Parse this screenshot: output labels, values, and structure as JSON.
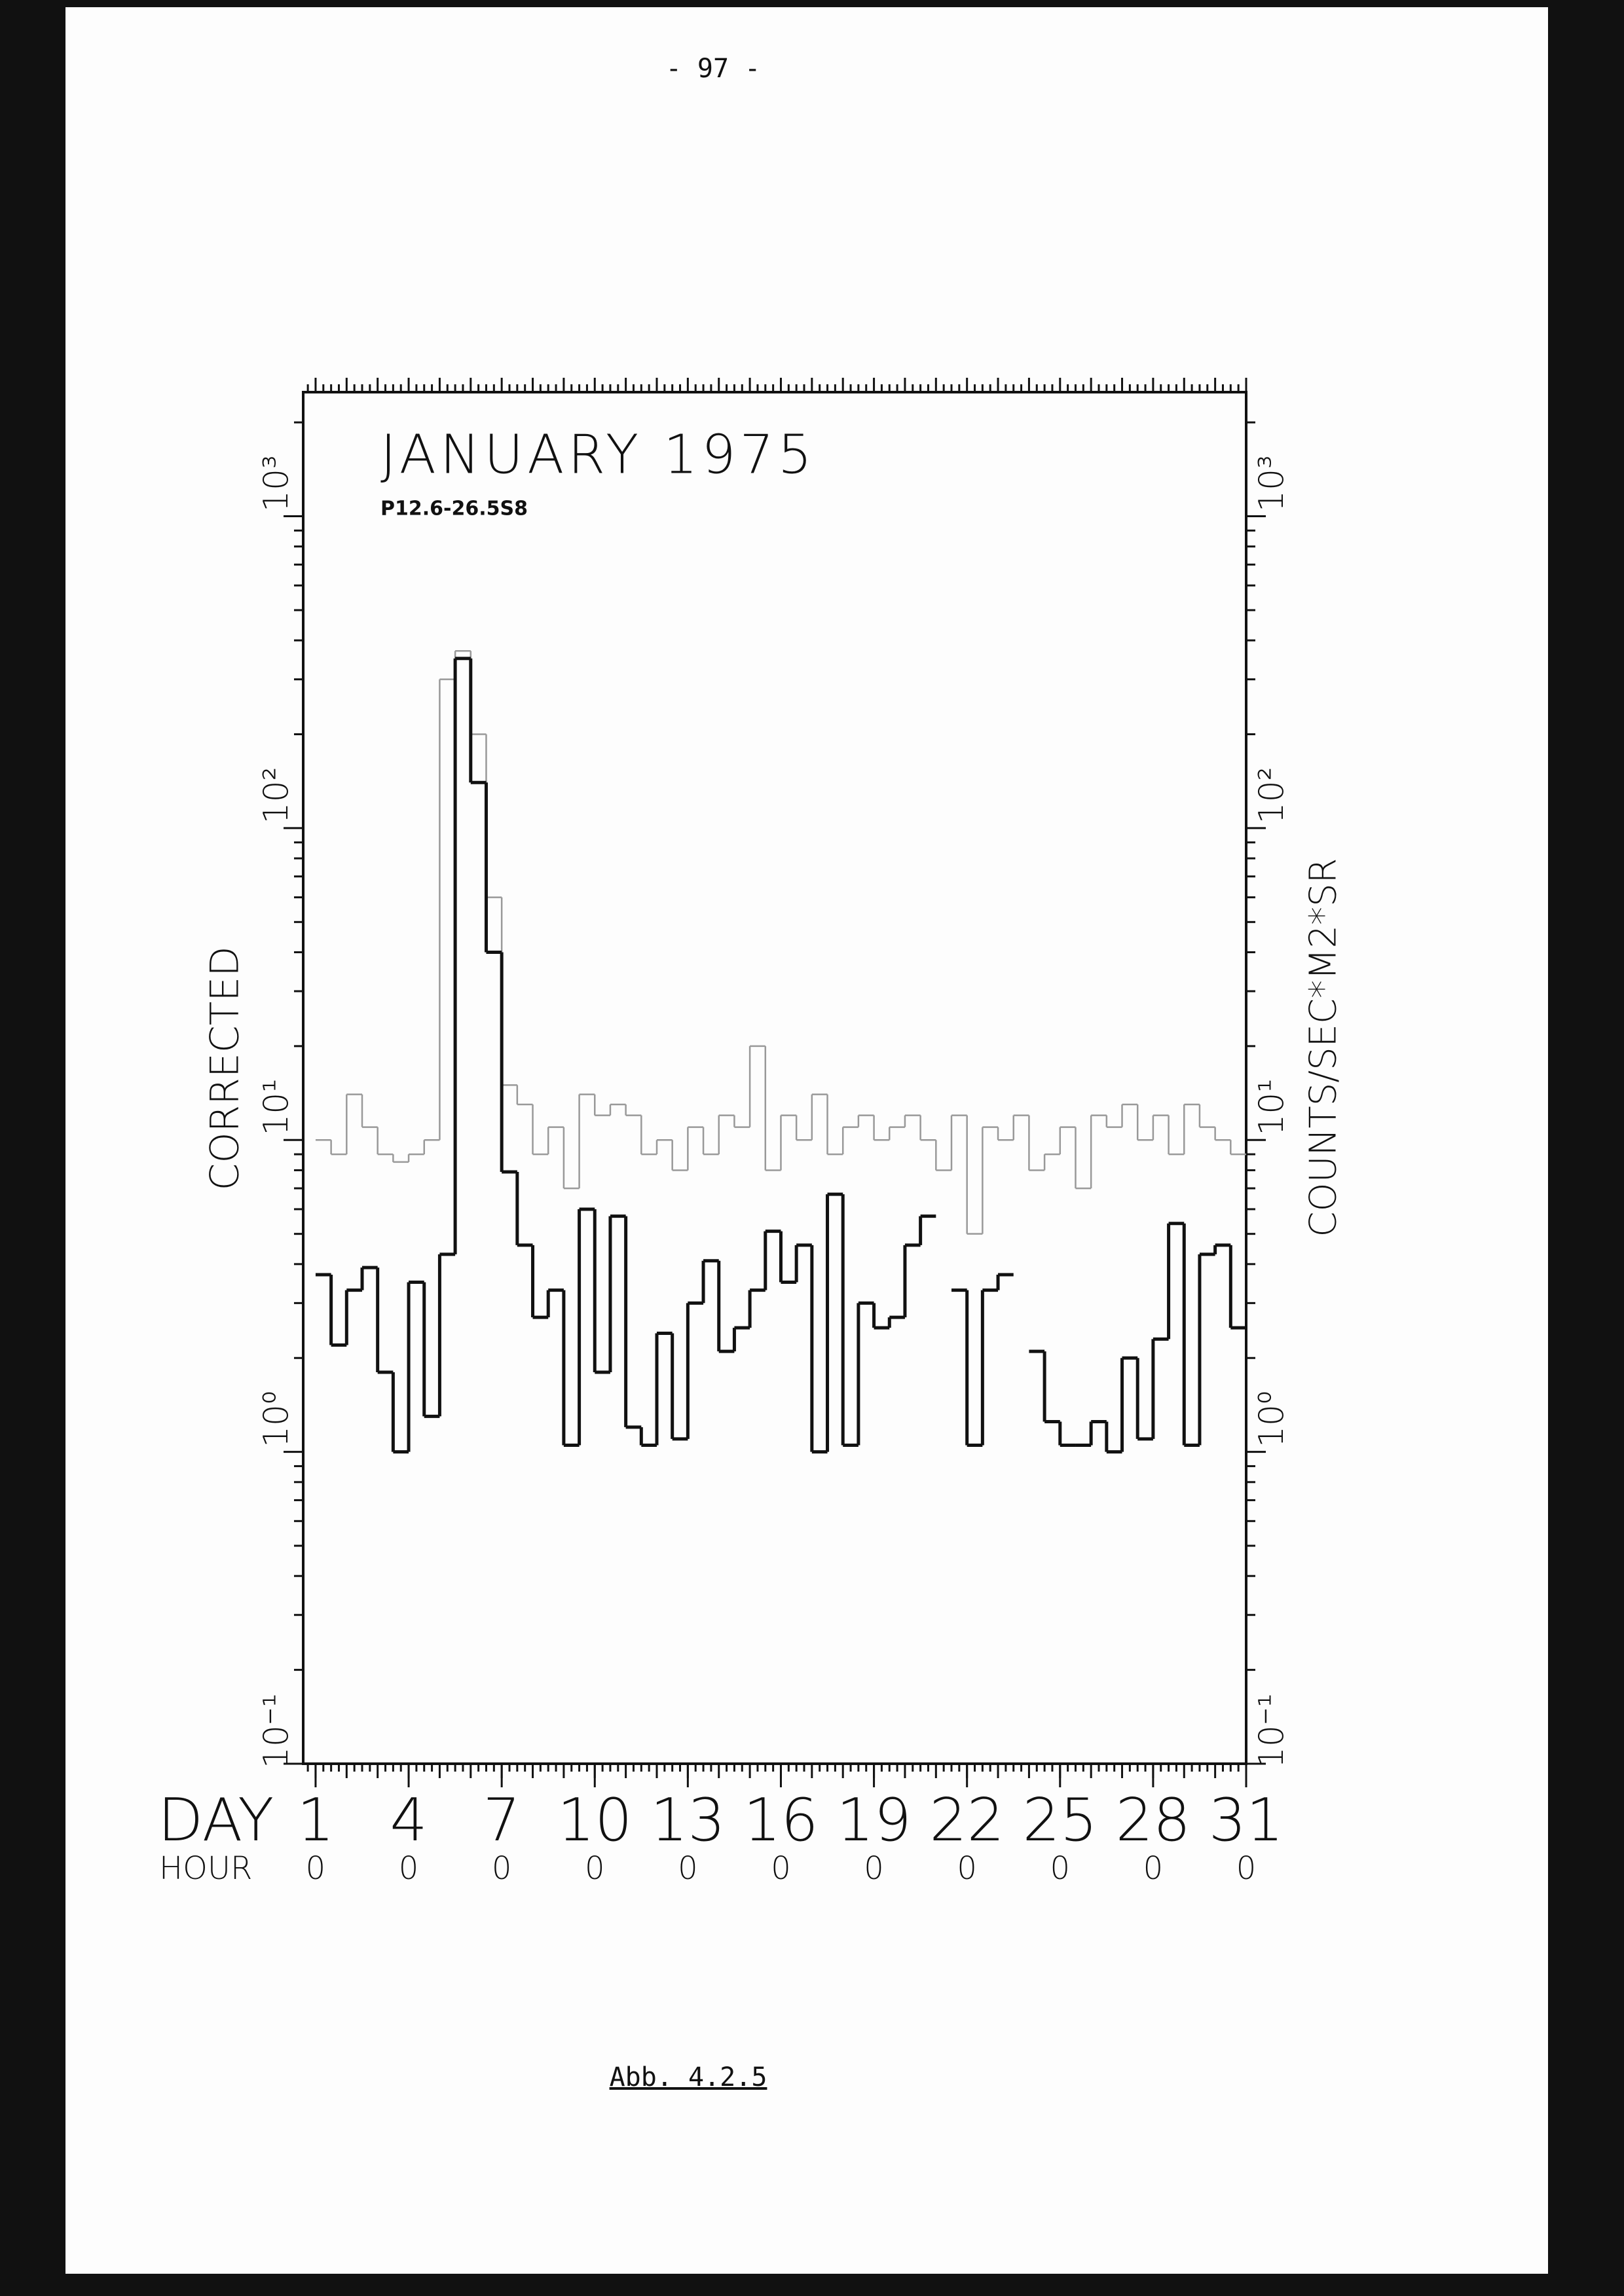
{
  "page_number": "- 97 -",
  "caption": "Abb. 4.2.5",
  "chart_data": {
    "type": "step",
    "title": "JANUARY 1975",
    "subtitle": "P12.6-26.5S8",
    "ylabel": "CORRECTED",
    "y2label": "COUNTS/SEC*M2*SR",
    "xlabel": "DAY",
    "hour_label": "HOUR",
    "hour_labels": [
      "0",
      "0",
      "0",
      "0",
      "0",
      "0",
      "0",
      "0",
      "0",
      "0",
      "0"
    ],
    "log_y": true,
    "xlim": [
      0.6,
      31
    ],
    "xticks": [
      1,
      4,
      7,
      10,
      13,
      16,
      19,
      22,
      25,
      28,
      31
    ],
    "ylim": [
      0.1,
      2500
    ],
    "yticks": [
      {
        "value": 0.1,
        "label": "10⁻¹"
      },
      {
        "value": 1,
        "label": "10⁰"
      },
      {
        "value": 10,
        "label": "10¹"
      },
      {
        "value": 100,
        "label": "10²"
      },
      {
        "value": 1000,
        "label": "10³"
      }
    ],
    "x": [
      1,
      1.5,
      2,
      2.5,
      3,
      3.5,
      4,
      4.5,
      5,
      5.5,
      6,
      6.5,
      7,
      7.5,
      8,
      8.5,
      9,
      9.5,
      10,
      10.5,
      11,
      11.5,
      12,
      12.5,
      13,
      13.5,
      14,
      14.5,
      15,
      15.5,
      16,
      16.5,
      17,
      17.5,
      18,
      18.5,
      19,
      19.5,
      20,
      20.5,
      21,
      21.5,
      22,
      22.5,
      23,
      23.5,
      24,
      24.5,
      25,
      25.5,
      26,
      26.5,
      27,
      27.5,
      28,
      28.5,
      29,
      29.5,
      30,
      30.5
    ],
    "series": [
      {
        "color": "#999999",
        "width": 2.5,
        "values": [
          10,
          9,
          14,
          11,
          9,
          8.5,
          9,
          10,
          300,
          370,
          200,
          60,
          15,
          13,
          9,
          11,
          7,
          14,
          12,
          13,
          12,
          9,
          10,
          8,
          11,
          9,
          12,
          11,
          20,
          8,
          12,
          10,
          14,
          9,
          11,
          12,
          10,
          11,
          12,
          10,
          8,
          12,
          5,
          11,
          10,
          12,
          8,
          9,
          11,
          7,
          12,
          11,
          13,
          10,
          12,
          9,
          13,
          11,
          10,
          9
        ]
      },
      {
        "color": "#111111",
        "width": 5,
        "values": [
          3.7,
          2.2,
          3.3,
          3.9,
          1.8,
          1.0,
          3.5,
          1.3,
          4.3,
          350,
          140,
          40,
          7.9,
          4.6,
          2.7,
          3.3,
          1.05,
          6,
          1.8,
          5.7,
          1.2,
          1.05,
          2.4,
          1.1,
          3,
          4.1,
          2.1,
          2.5,
          3.3,
          5.1,
          3.5,
          4.6,
          1.0,
          6.7,
          1.05,
          3,
          2.5,
          2.7,
          4.6,
          5.7,
          null,
          3.3,
          1.05,
          3.3,
          3.7,
          null,
          2.1,
          1.25,
          1.05,
          1.05,
          1.25,
          1.0,
          2.0,
          1.1,
          2.3,
          5.4,
          1.05,
          4.3,
          4.6,
          2.5
        ]
      }
    ]
  }
}
